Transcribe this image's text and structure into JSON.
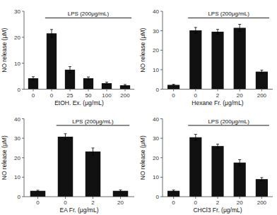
{
  "chart_data": [
    {
      "type": "bar",
      "xlabel": "EtOH. Ex. (μg/mL)",
      "ylabel": "NO release (μM)",
      "categories": [
        "0",
        "0",
        "25",
        "50",
        "100",
        "200"
      ],
      "values": [
        4.2,
        21.5,
        7.5,
        4.2,
        2.3,
        1.5
      ],
      "errors": [
        0.6,
        1.5,
        1.2,
        0.5,
        0.4,
        0.3
      ],
      "color": "#111111",
      "ylim": [
        0,
        30
      ],
      "yticks": [
        0,
        10,
        20,
        30
      ],
      "annotations": [
        {
          "text": "LPS (200μg/mL)",
          "start": 1,
          "end": 5
        }
      ]
    },
    {
      "type": "bar",
      "xlabel": "Hexane Fr. (μg/mL)",
      "ylabel": "NO release (μM)",
      "categories": [
        "0",
        "0",
        "2",
        "20",
        "200"
      ],
      "values": [
        2.2,
        30.2,
        29.5,
        31.5,
        9.0
      ],
      "errors": [
        0.3,
        1.5,
        1.2,
        1.8,
        0.8
      ],
      "color": "#111111",
      "ylim": [
        0,
        40
      ],
      "yticks": [
        0,
        10,
        20,
        30,
        40
      ],
      "annotations": [
        {
          "text": "LPS (200μg/mL)",
          "start": 1,
          "end": 4
        }
      ]
    },
    {
      "type": "bar",
      "xlabel": "EA Fr. (μg/mL)",
      "ylabel": "NO release (μM)",
      "categories": [
        "0",
        "0",
        "2",
        "20"
      ],
      "values": [
        3.0,
        30.8,
        23.2,
        3.0
      ],
      "errors": [
        0.3,
        1.5,
        1.8,
        0.5
      ],
      "color": "#111111",
      "ylim": [
        0,
        40
      ],
      "yticks": [
        0,
        10,
        20,
        30,
        40
      ],
      "annotations": [
        {
          "text": "LPS (200μg/mL)",
          "start": 1,
          "end": 3
        }
      ]
    },
    {
      "type": "bar",
      "xlabel": "CHCl3 Fr. (μg/mL)",
      "ylabel": "NO release (μM)",
      "categories": [
        "0",
        "0",
        "2",
        "20",
        "200"
      ],
      "values": [
        3.0,
        30.5,
        26.0,
        17.5,
        9.0
      ],
      "errors": [
        0.4,
        1.5,
        1.0,
        1.5,
        0.8
      ],
      "color": "#111111",
      "ylim": [
        0,
        40
      ],
      "yticks": [
        0,
        10,
        20,
        30,
        40
      ],
      "annotations": [
        {
          "text": "LPS (200μg/mL)",
          "start": 1,
          "end": 4
        }
      ]
    }
  ]
}
